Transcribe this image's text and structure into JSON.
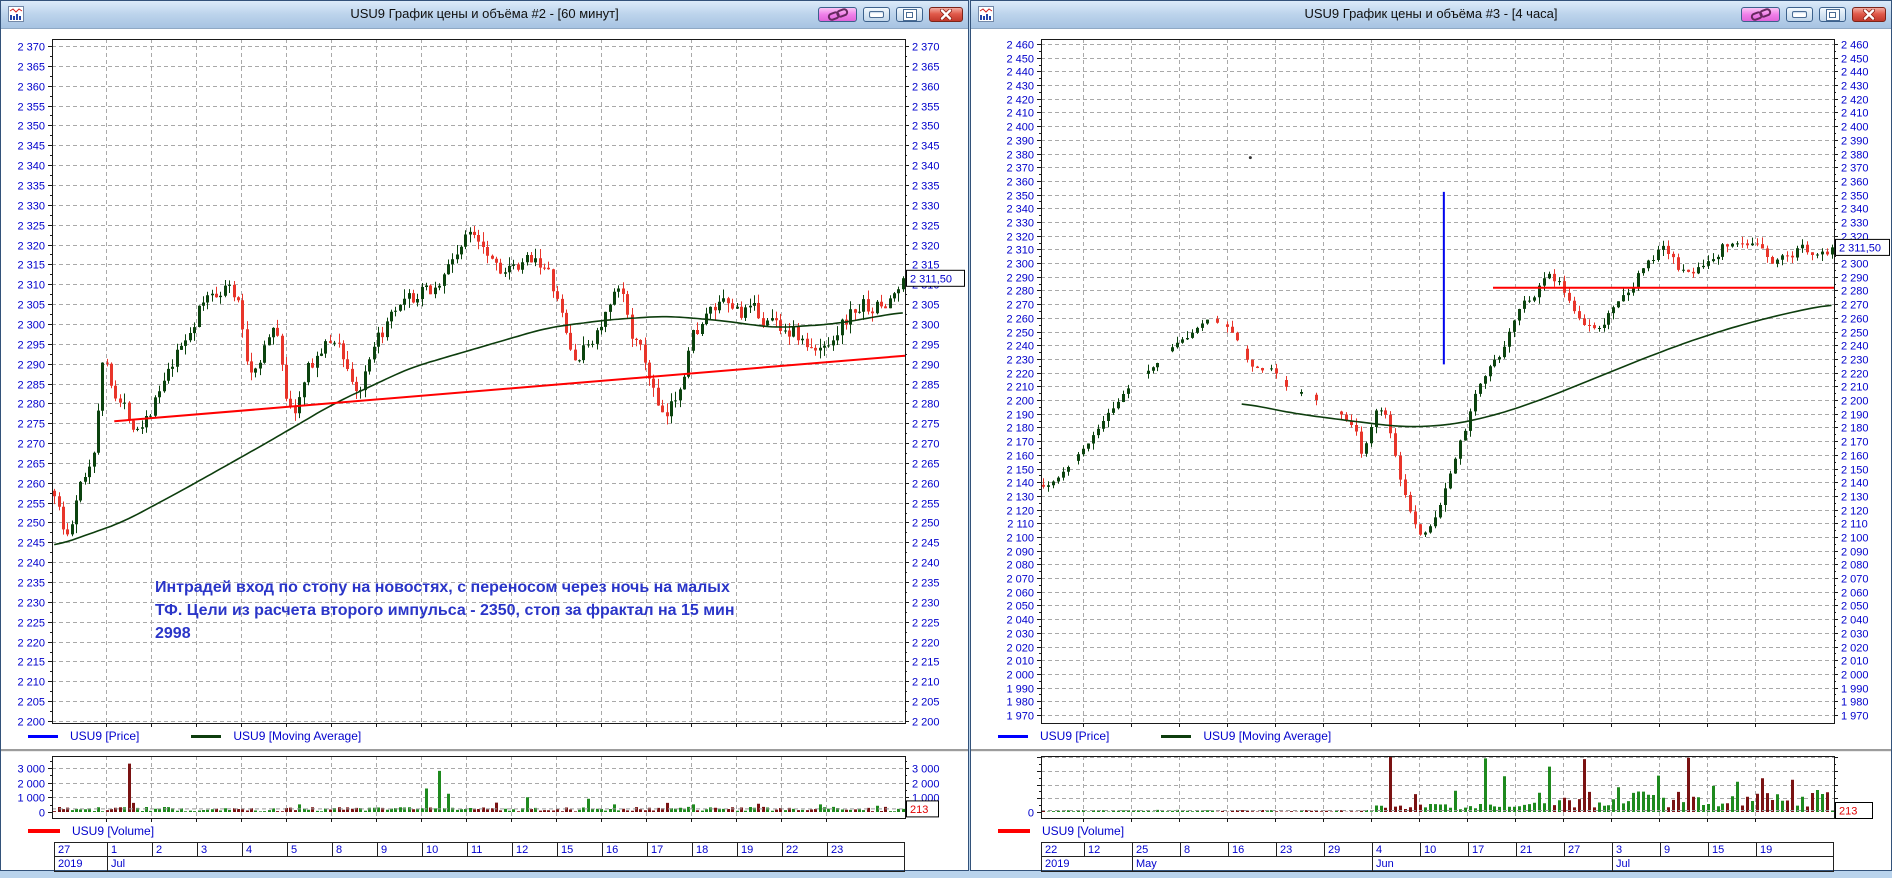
{
  "app": {
    "mdi_background": "#b9d3ec",
    "colors": {
      "candle_up": "#0b430e",
      "candle_down": "#e8352a",
      "volume_up": "#1e8a1e",
      "volume_down": "#7a1212",
      "moving_average": "#0d3d0d",
      "grid": "#a9a9a9",
      "axis_text": "#0000cc",
      "trend_red": "#ff0000",
      "marker_blue": "#0004ee",
      "volume_label_text": "#e00000"
    }
  },
  "windows": [
    {
      "title": "USU9 График цены и объёма #2 - [60 минут]",
      "price_axis": {
        "min": 2200,
        "max": 2370,
        "step": 5
      },
      "volume_axis": {
        "min": 0,
        "max": 3000,
        "step": 1000
      },
      "current_price_label": "2 311,50",
      "current_volume_label": "213",
      "legend": {
        "price": [
          {
            "label": "USU9 [Price]",
            "color": "#0000ff"
          },
          {
            "label": "USU9 [Moving Average]",
            "color": "#0d3d0d"
          }
        ],
        "volume": [
          {
            "label": "USU9 [Volume]",
            "color": "#ff0000"
          }
        ]
      },
      "timeline": {
        "days": [
          "27",
          "1",
          "2",
          "3",
          "4",
          "5",
          "8",
          "9",
          "10",
          "11",
          "12",
          "15",
          "16",
          "17",
          "18",
          "19",
          "22",
          "23"
        ],
        "months": [
          {
            "label": "2019",
            "cells": 1
          },
          {
            "label": "Jul",
            "cells": 17
          }
        ]
      },
      "annotation": {
        "color": "#2a35c8",
        "lines": [
          "Интрадей вход по стопу на новостях, с переносом через ночь на малых",
          "ТФ. Цели из расчета второго импульса - 2350, стоп за фрактал на 15 мин",
          "2998"
        ]
      },
      "chart_data": {
        "type": "candlestick",
        "symbol": "USU9",
        "timeframe": "60 минут",
        "bars": 195,
        "noise": 4.5,
        "wick": 2.4,
        "ma_start": 0,
        "last_price": 2311.5,
        "last_volume": 213,
        "price_keypoints": [
          [
            0,
            2258
          ],
          [
            0.012,
            2242
          ],
          [
            0.03,
            2262
          ],
          [
            0.045,
            2268
          ],
          [
            0.055,
            2298
          ],
          [
            0.07,
            2281
          ],
          [
            0.095,
            2274
          ],
          [
            0.13,
            2286
          ],
          [
            0.17,
            2305
          ],
          [
            0.2,
            2311
          ],
          [
            0.215,
            2305
          ],
          [
            0.228,
            2284
          ],
          [
            0.245,
            2296
          ],
          [
            0.262,
            2299
          ],
          [
            0.275,
            2273
          ],
          [
            0.3,
            2291
          ],
          [
            0.33,
            2297
          ],
          [
            0.355,
            2281
          ],
          [
            0.385,
            2299
          ],
          [
            0.42,
            2306
          ],
          [
            0.45,
            2310
          ],
          [
            0.475,
            2320
          ],
          [
            0.495,
            2324
          ],
          [
            0.52,
            2315
          ],
          [
            0.545,
            2312
          ],
          [
            0.565,
            2319
          ],
          [
            0.585,
            2309
          ],
          [
            0.61,
            2289
          ],
          [
            0.63,
            2296
          ],
          [
            0.65,
            2303
          ],
          [
            0.665,
            2309
          ],
          [
            0.68,
            2296
          ],
          [
            0.7,
            2286
          ],
          [
            0.715,
            2272
          ],
          [
            0.73,
            2282
          ],
          [
            0.75,
            2299
          ],
          [
            0.78,
            2304
          ],
          [
            0.81,
            2303
          ],
          [
            0.84,
            2301
          ],
          [
            0.87,
            2298
          ],
          [
            0.895,
            2291
          ],
          [
            0.92,
            2300
          ],
          [
            0.95,
            2305
          ],
          [
            0.975,
            2304
          ],
          [
            1,
            2311.5
          ]
        ],
        "ma_keypoints": [
          [
            0,
            2244
          ],
          [
            0.08,
            2250
          ],
          [
            0.15,
            2258
          ],
          [
            0.25,
            2270
          ],
          [
            0.33,
            2280
          ],
          [
            0.42,
            2289
          ],
          [
            0.5,
            2294
          ],
          [
            0.58,
            2299
          ],
          [
            0.65,
            2301
          ],
          [
            0.72,
            2302
          ],
          [
            0.78,
            2301
          ],
          [
            0.85,
            2299
          ],
          [
            0.92,
            2300
          ],
          [
            1,
            2303
          ]
        ],
        "overlays": [
          {
            "type": "trendline",
            "from": [
              0.073,
              2275.5
            ],
            "to": [
              1,
              2292
            ],
            "color": "#ff0000"
          }
        ],
        "volume_profile": {
          "scale_max": 3000,
          "base_regions": [
            [
              0,
              1,
              40,
              350
            ]
          ],
          "spikes": [
            [
              0.087,
              3300
            ],
            [
              0.095,
              620
            ],
            [
              0.29,
              520
            ],
            [
              0.44,
              1600
            ],
            [
              0.455,
              2800
            ],
            [
              0.463,
              1250
            ],
            [
              0.52,
              640
            ],
            [
              0.555,
              1000
            ],
            [
              0.63,
              900
            ],
            [
              0.66,
              520
            ],
            [
              0.72,
              620
            ],
            [
              0.75,
              520
            ],
            [
              0.83,
              560
            ],
            [
              0.9,
              520
            ],
            [
              0.97,
              420
            ]
          ]
        }
      }
    },
    {
      "title": "USU9 График цены и объёма #3 - [4 часа]",
      "price_axis": {
        "min": 1970,
        "max": 2460,
        "step": 10
      },
      "volume_axis": {
        "min": 0,
        "max": 8000,
        "step": 2000
      },
      "current_price_label": "2 311,50",
      "current_volume_label": "213",
      "legend": {
        "price": [
          {
            "label": "USU9 [Price]",
            "color": "#0000ff"
          },
          {
            "label": "USU9 [Moving Average]",
            "color": "#0d3d0d"
          }
        ],
        "volume": [
          {
            "label": "USU9 [Volume]",
            "color": "#ff0000"
          }
        ]
      },
      "timeline": {
        "days": [
          "22",
          "12",
          "25",
          "8",
          "16",
          "23",
          "29",
          "4",
          "10",
          "17",
          "21",
          "27",
          "3",
          "9",
          "15",
          "19"
        ],
        "months": [
          {
            "label": "2019",
            "cells": 2
          },
          {
            "label": "May",
            "cells": 5
          },
          {
            "label": "Jun",
            "cells": 5
          },
          {
            "label": "Jul",
            "cells": 4
          }
        ]
      },
      "chart_data": {
        "type": "candlestick",
        "symbol": "USU9",
        "timeframe": "4 часа",
        "bars": 160,
        "noise": 8,
        "wick": 5,
        "ma_start": 0.25,
        "sparse_until": 0.4,
        "last_price": 2311.5,
        "last_volume": 213,
        "price_keypoints": [
          [
            0,
            2138
          ],
          [
            0.02,
            2150
          ],
          [
            0.05,
            2180
          ],
          [
            0.08,
            2205
          ],
          [
            0.11,
            2222
          ],
          [
            0.14,
            2232
          ],
          [
            0.165,
            2248
          ],
          [
            0.19,
            2258
          ],
          [
            0.21,
            2262
          ],
          [
            0.235,
            2240
          ],
          [
            0.26,
            2205
          ],
          [
            0.285,
            2228
          ],
          [
            0.3,
            2205
          ],
          [
            0.315,
            2190
          ],
          [
            0.33,
            2208
          ],
          [
            0.35,
            2180
          ],
          [
            0.37,
            2192
          ],
          [
            0.385,
            2174
          ],
          [
            0.4,
            2150
          ],
          [
            0.42,
            2202
          ],
          [
            0.435,
            2180
          ],
          [
            0.45,
            2140
          ],
          [
            0.465,
            2115
          ],
          [
            0.478,
            2100
          ],
          [
            0.49,
            2110
          ],
          [
            0.5,
            2125
          ],
          [
            0.515,
            2150
          ],
          [
            0.53,
            2180
          ],
          [
            0.545,
            2205
          ],
          [
            0.56,
            2222
          ],
          [
            0.575,
            2235
          ],
          [
            0.59,
            2250
          ],
          [
            0.605,
            2268
          ],
          [
            0.62,
            2280
          ],
          [
            0.635,
            2295
          ],
          [
            0.65,
            2285
          ],
          [
            0.665,
            2270
          ],
          [
            0.68,
            2258
          ],
          [
            0.695,
            2252
          ],
          [
            0.71,
            2262
          ],
          [
            0.73,
            2275
          ],
          [
            0.75,
            2290
          ],
          [
            0.77,
            2305
          ],
          [
            0.79,
            2312
          ],
          [
            0.805,
            2295
          ],
          [
            0.82,
            2288
          ],
          [
            0.84,
            2302
          ],
          [
            0.86,
            2315
          ],
          [
            0.88,
            2320
          ],
          [
            0.9,
            2312
          ],
          [
            0.92,
            2300
          ],
          [
            0.94,
            2305
          ],
          [
            0.96,
            2312
          ],
          [
            0.98,
            2308
          ],
          [
            1,
            2311.5
          ]
        ],
        "ma_keypoints": [
          [
            0.25,
            2198
          ],
          [
            0.32,
            2190
          ],
          [
            0.4,
            2184
          ],
          [
            0.46,
            2180
          ],
          [
            0.52,
            2182
          ],
          [
            0.58,
            2190
          ],
          [
            0.64,
            2202
          ],
          [
            0.7,
            2216
          ],
          [
            0.76,
            2230
          ],
          [
            0.82,
            2243
          ],
          [
            0.88,
            2254
          ],
          [
            0.94,
            2263
          ],
          [
            1,
            2270
          ]
        ],
        "overlays": [
          {
            "type": "trendline",
            "from": [
              0.57,
              2282
            ],
            "to": [
              1,
              2282
            ],
            "color": "#ff0000"
          },
          {
            "type": "vline",
            "at": 0.508,
            "from": 2352,
            "to": 2226,
            "color": "#0004ee"
          },
          {
            "type": "dot",
            "at": [
              0.264,
              2377
            ],
            "color": "#333333"
          }
        ],
        "volume_profile": {
          "scale_max": 8000,
          "base_regions": [
            [
              0,
              0.42,
              50,
              300
            ],
            [
              0.42,
              0.6,
              300,
              1200
            ],
            [
              0.6,
              1,
              600,
              3000
            ]
          ],
          "spikes": [
            [
              0.44,
              8200
            ],
            [
              0.47,
              2600
            ],
            [
              0.52,
              3100
            ],
            [
              0.56,
              7800
            ],
            [
              0.585,
              5200
            ],
            [
              0.64,
              6600
            ],
            [
              0.685,
              7700
            ],
            [
              0.73,
              3600
            ],
            [
              0.78,
              5300
            ],
            [
              0.815,
              7900
            ],
            [
              0.85,
              3800
            ],
            [
              0.88,
              4400
            ],
            [
              0.915,
              4900
            ],
            [
              0.95,
              4700
            ],
            [
              0.98,
              3200
            ]
          ]
        }
      }
    }
  ]
}
